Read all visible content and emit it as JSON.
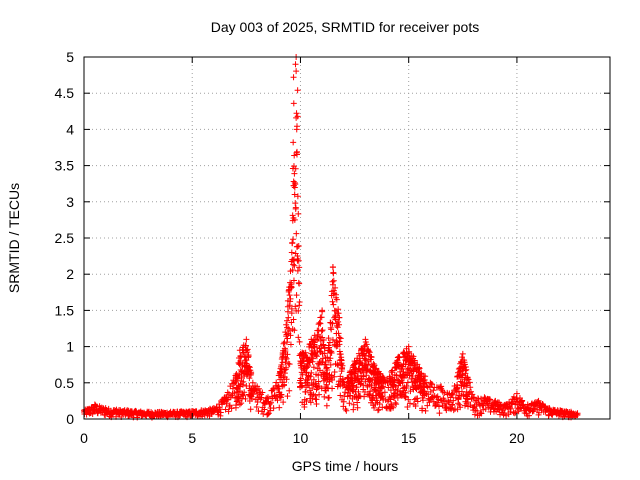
{
  "chart_data": {
    "type": "scatter",
    "title": "Day 003 of 2025, SRMTID for receiver pots",
    "xlabel": "GPS time / hours",
    "ylabel": "SRMTID / TECUs",
    "xlim": [
      0,
      24.3
    ],
    "ylim": [
      0,
      5
    ],
    "x_ticks": [
      0,
      5,
      10,
      15,
      20
    ],
    "x_tick_labels": [
      "0",
      "5",
      "10",
      "15",
      "20"
    ],
    "y_ticks": [
      0,
      0.5,
      1,
      1.5,
      2,
      2.5,
      3,
      3.5,
      4,
      4.5,
      5
    ],
    "y_tick_labels": [
      "0",
      "0.5",
      "1",
      "1.5",
      "2",
      "2.5",
      "3",
      "3.5",
      "4",
      "4.5",
      "5"
    ],
    "grid": true,
    "marker": "+",
    "series": [
      {
        "name": "SRMTID",
        "color": "#ff0000",
        "envelope": {
          "x": [
            0,
            0.5,
            1,
            1.5,
            2,
            3,
            4,
            5,
            6,
            6.5,
            7,
            7.2,
            7.5,
            7.8,
            8,
            8.5,
            9,
            9.3,
            9.6,
            9.8,
            10,
            10.5,
            11,
            11.2,
            11.5,
            11.8,
            12,
            12.5,
            13,
            13.5,
            14,
            14.5,
            15,
            15.5,
            16,
            16.5,
            17,
            17.5,
            18,
            18.5,
            19,
            19.5,
            20,
            20.5,
            21,
            21.5,
            22,
            22.5,
            22.8
          ],
          "y": [
            0.12,
            0.2,
            0.15,
            0.13,
            0.12,
            0.1,
            0.1,
            0.11,
            0.15,
            0.3,
            0.6,
            0.95,
            1.1,
            0.5,
            0.45,
            0.3,
            0.6,
            1.2,
            2.3,
            5.0,
            0.9,
            1.1,
            1.5,
            0.7,
            2.1,
            1.4,
            0.5,
            0.8,
            1.1,
            0.7,
            0.55,
            0.85,
            1.0,
            0.7,
            0.5,
            0.45,
            0.35,
            0.9,
            0.3,
            0.3,
            0.25,
            0.2,
            0.35,
            0.2,
            0.25,
            0.15,
            0.12,
            0.1,
            0.08
          ]
        }
      }
    ]
  }
}
